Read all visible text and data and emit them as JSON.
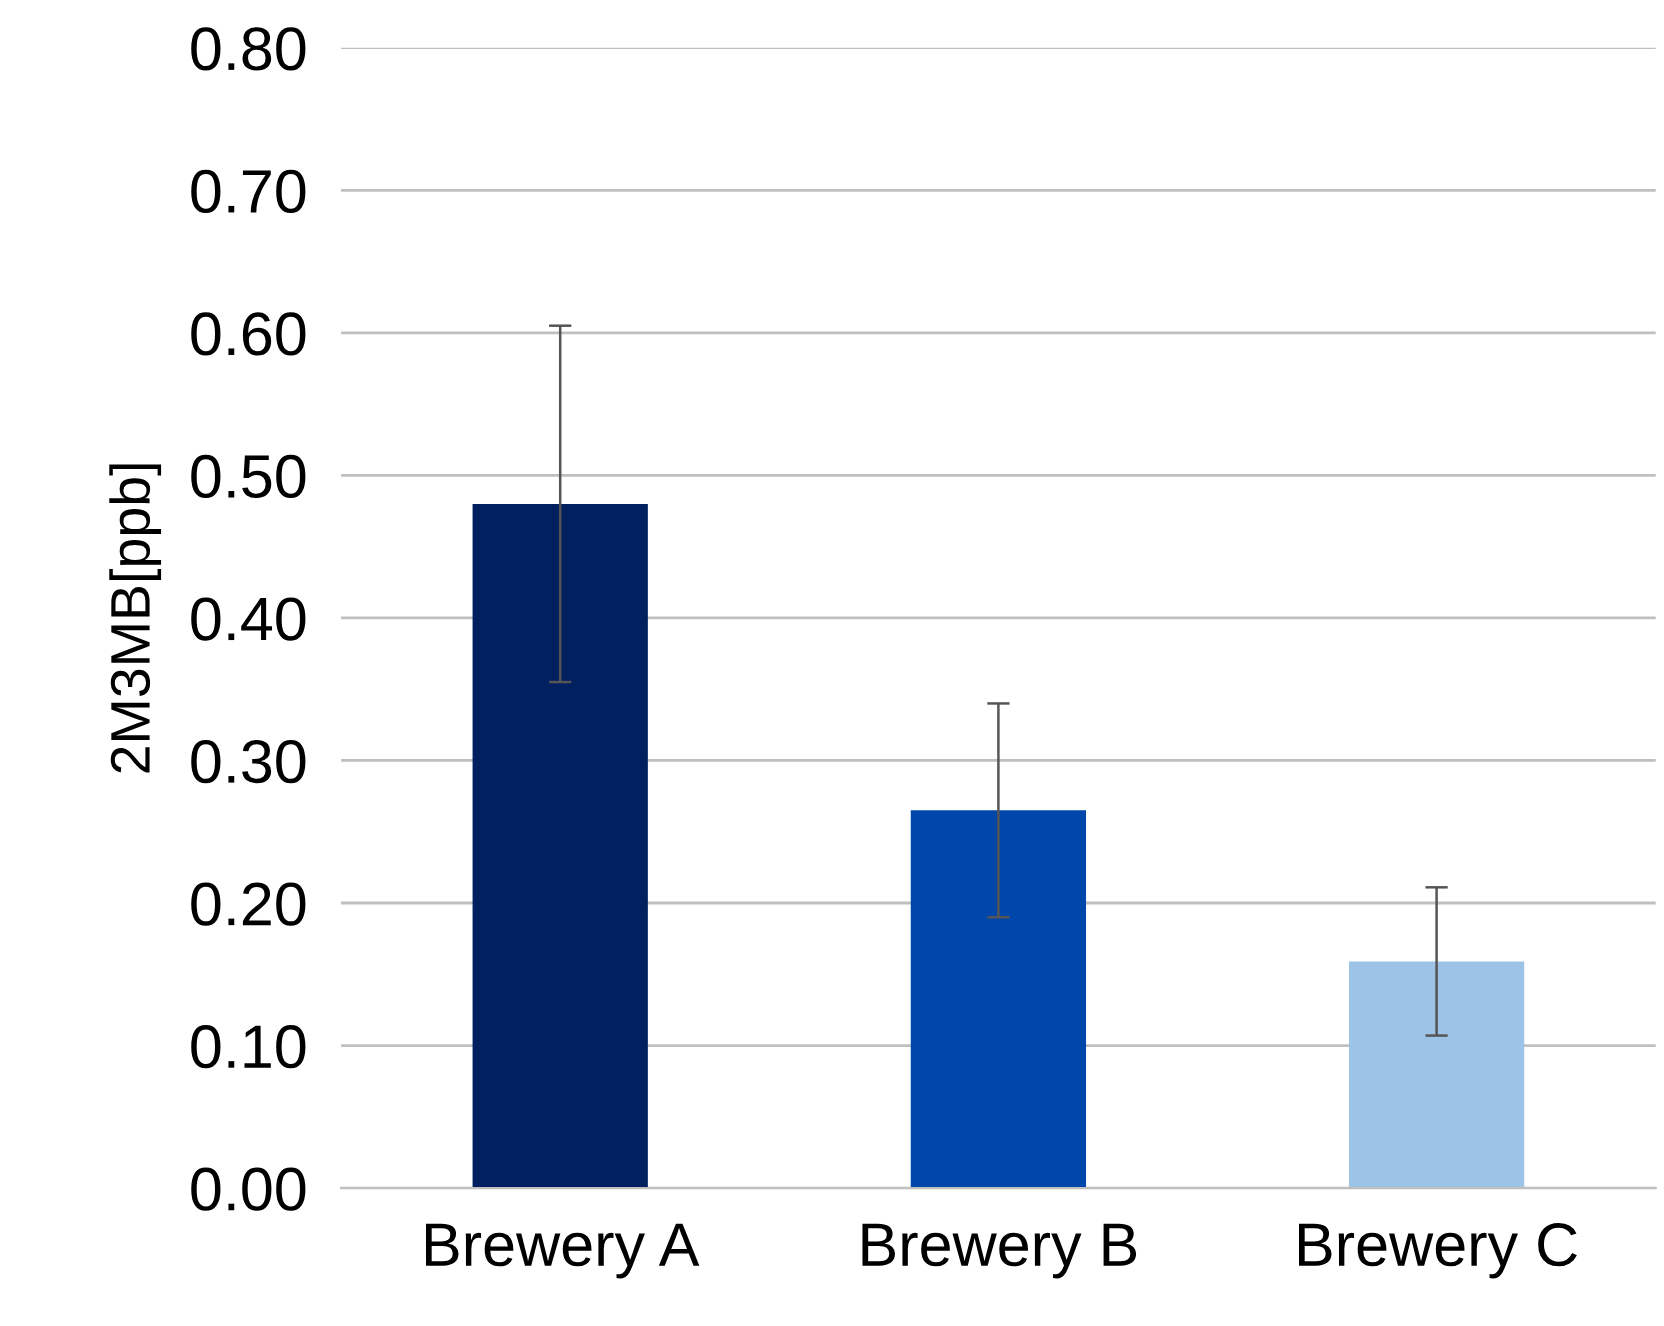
{
  "chart_data": {
    "type": "bar",
    "ylabel": "2M3MB[ppb]",
    "categories": [
      "Brewery A",
      "Brewery B",
      "Brewery C"
    ],
    "values": [
      0.48,
      0.265,
      0.159
    ],
    "colors": [
      "#002060",
      "#0047ab",
      "#9dc3e6"
    ],
    "errors": [
      0.125,
      0.075,
      0.052
    ],
    "ylim": [
      0,
      0.8
    ],
    "yticks": [
      {
        "value": 0,
        "label": "0.00"
      },
      {
        "value": 0.1,
        "label": "0.10"
      },
      {
        "value": 0.2,
        "label": "0.20"
      },
      {
        "value": 0.3,
        "label": "0.30"
      },
      {
        "value": 0.4,
        "label": "0.40"
      },
      {
        "value": 0.5,
        "label": "0.50"
      },
      {
        "value": 0.6,
        "label": "0.60"
      },
      {
        "value": 0.7,
        "label": "0.70"
      },
      {
        "value": 0.8,
        "label": "0.80"
      }
    ],
    "grid": "y"
  }
}
